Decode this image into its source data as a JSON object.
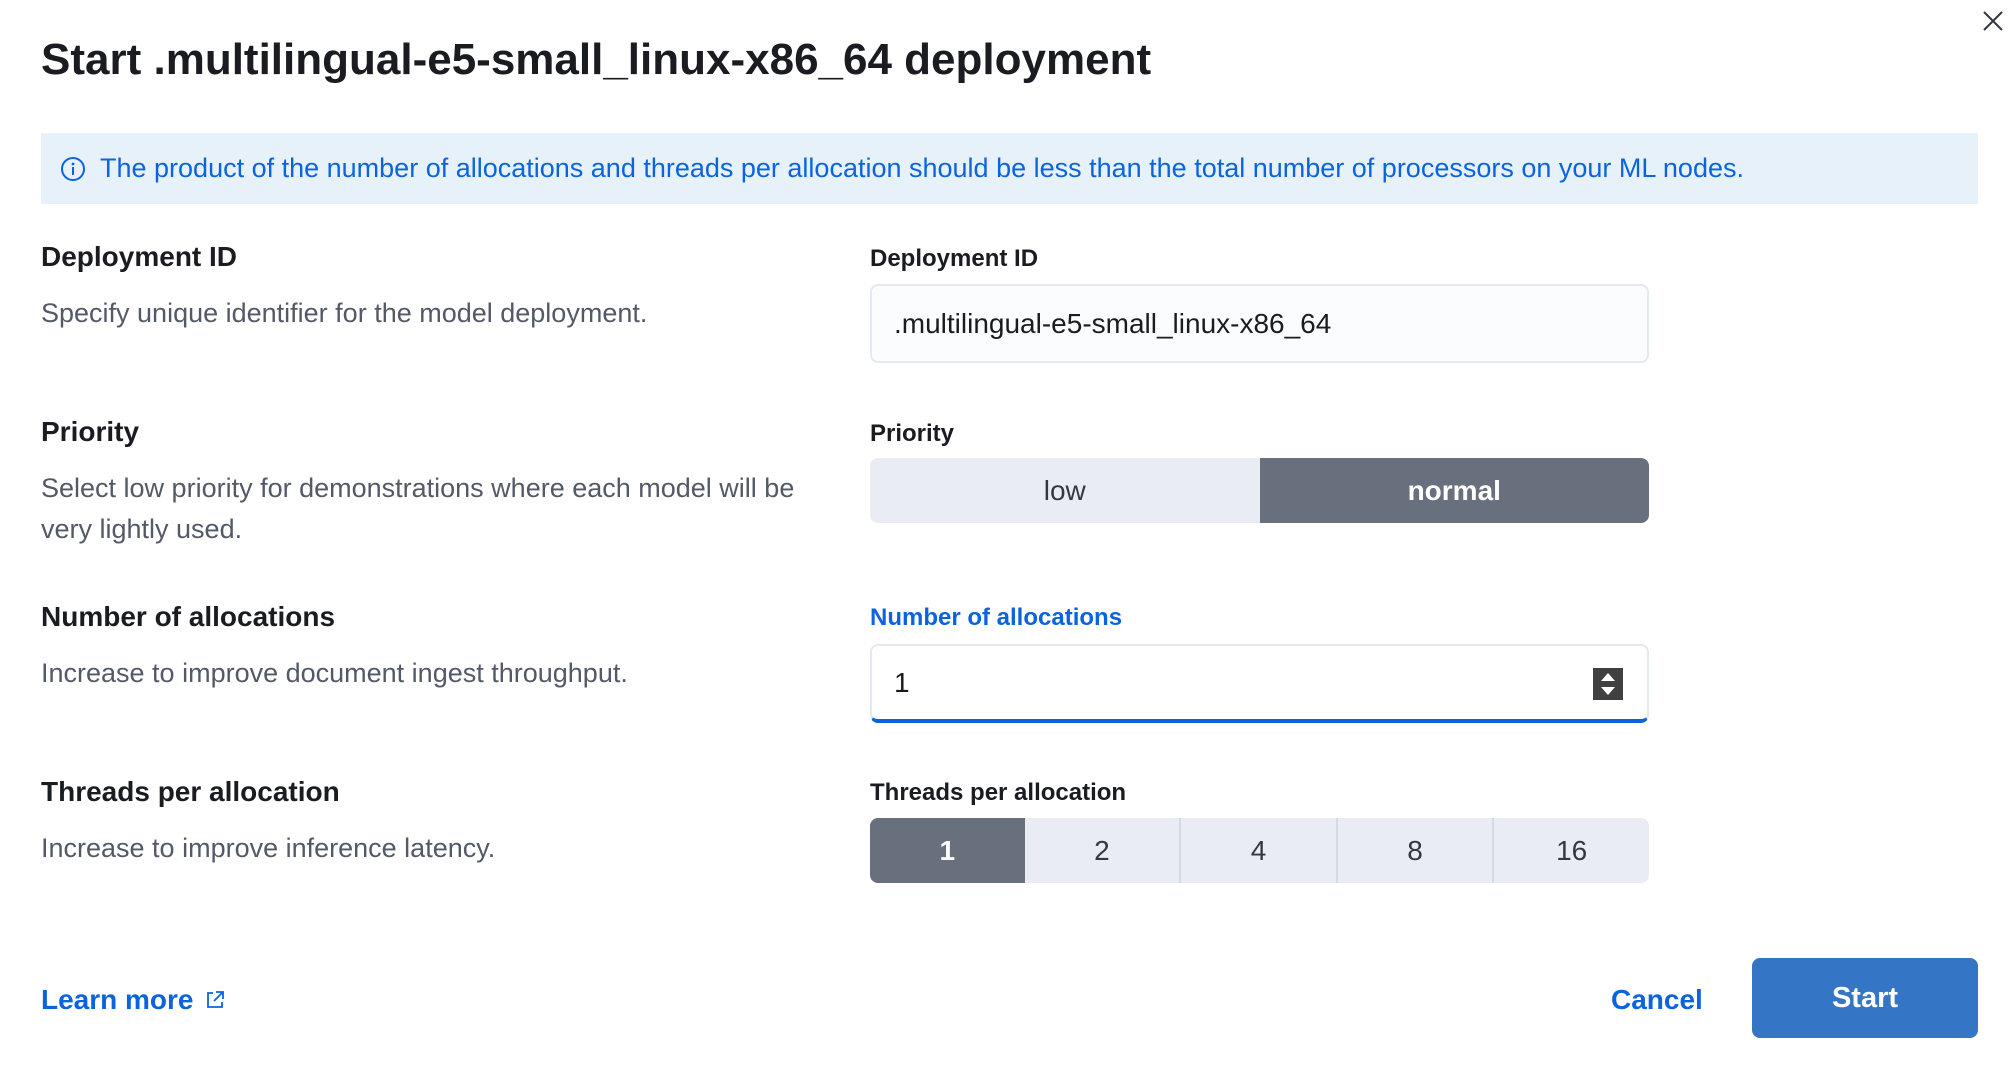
{
  "modal": {
    "title": "Start .multilingual-e5-small_linux-x86_64 deployment",
    "close_icon": "close-icon"
  },
  "callout": {
    "icon": "info-icon",
    "text": "The product of the number of allocations and threads per allocation should be less than the total number of processors on your ML nodes."
  },
  "deployment_id": {
    "heading": "Deployment ID",
    "description": "Specify unique identifier for the model deployment.",
    "label": "Deployment ID",
    "value": ".multilingual-e5-small_linux-x86_64"
  },
  "priority": {
    "heading": "Priority",
    "description": "Select low priority for demonstrations where each model will be very lightly used.",
    "label": "Priority",
    "options": [
      "low",
      "normal"
    ],
    "selected": "normal"
  },
  "allocations": {
    "heading": "Number of allocations",
    "description": "Increase to improve document ingest throughput.",
    "label": "Number of allocations",
    "value": "1"
  },
  "threads": {
    "heading": "Threads per allocation",
    "description": "Increase to improve inference latency.",
    "label": "Threads per allocation",
    "options": [
      "1",
      "2",
      "4",
      "8",
      "16"
    ],
    "selected": "1"
  },
  "footer": {
    "learn_more": "Learn more",
    "cancel": "Cancel",
    "start": "Start"
  },
  "colors": {
    "accent": "#0b64dd",
    "primary_button": "#3575c5",
    "selected_segment": "#69707d",
    "callout_bg": "#e6f1fa"
  }
}
